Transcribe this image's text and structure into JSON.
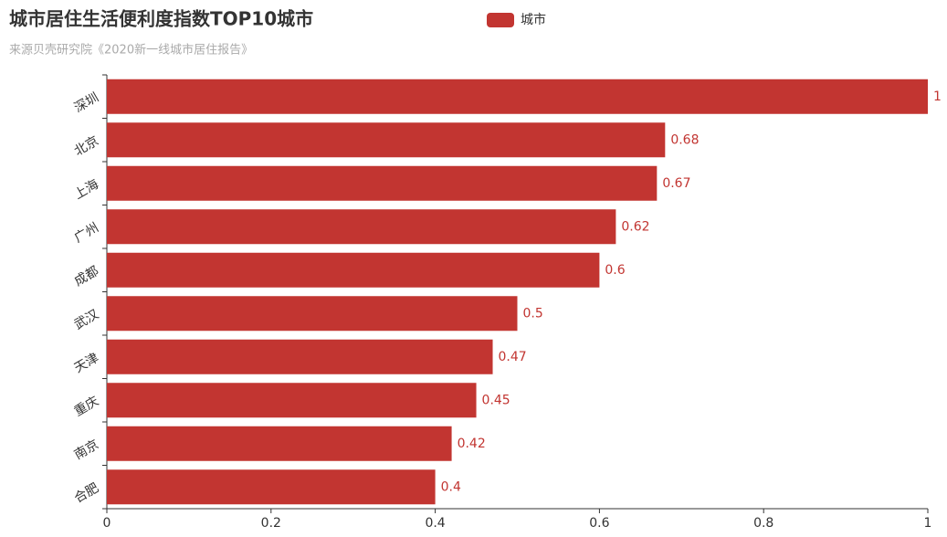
{
  "chart_data": {
    "type": "bar",
    "orientation": "horizontal",
    "title": "城市居住生活便利度指数TOP10城市",
    "subtitle": "来源贝壳研究院《2020新一线城市居住报告》",
    "categories": [
      "深圳",
      "北京",
      "上海",
      "广州",
      "成都",
      "武汉",
      "天津",
      "重庆",
      "南京",
      "合肥"
    ],
    "series": [
      {
        "name": "城市",
        "color": "#c23531",
        "values": [
          1,
          0.68,
          0.67,
          0.62,
          0.6,
          0.5,
          0.47,
          0.45,
          0.42,
          0.4
        ]
      }
    ],
    "xlim": [
      0,
      1
    ],
    "xticks": [
      0,
      0.2,
      0.4,
      0.6,
      0.8,
      1
    ],
    "grid": false,
    "legend": "top"
  }
}
